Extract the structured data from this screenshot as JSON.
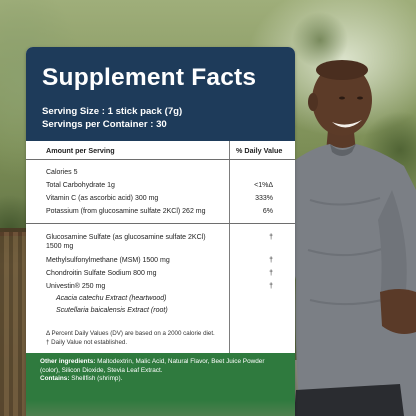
{
  "panel": {
    "title": "Supplement Facts",
    "serving_size": "Serving Size : 1 stick pack (7g)",
    "servings_per_container": "Servings per Container : 30",
    "header_amount": "Amount per Serving",
    "header_dv": "% Daily Value"
  },
  "nutrients": [
    {
      "name": "Calories  5",
      "dv": ""
    },
    {
      "name": "Total Carbohydrate  1g",
      "dv": "<1%Δ"
    },
    {
      "name": "Vitamin C (as ascorbic acid)  300 mg",
      "dv": "333%"
    },
    {
      "name": "Potassium (from glucosamine sulfate 2KCl) 262 mg",
      "dv": "6%"
    }
  ],
  "actives": [
    {
      "name": "Glucosamine Sulfate (as glucosamine sulfate 2KCl)",
      "name2": "1500 mg",
      "dv": "†"
    },
    {
      "name": "Methylsulfonylmethane (MSM)  1500 mg",
      "dv": "†"
    },
    {
      "name": "Chondroitin Sulfate Sodium  800 mg",
      "dv": "†"
    },
    {
      "name": "Univestin®  250 mg",
      "dv": "†"
    },
    {
      "name": "Acacia catechu Extract (heartwood)",
      "dv": ""
    },
    {
      "name": "Scutellaria baicalensis Extract (root)",
      "dv": ""
    }
  ],
  "footnotes": {
    "dv_note": "Δ  Percent Daily Values (DV) are based on a 2000 calorie diet.",
    "dagger_note": "† Daily Value not established."
  },
  "ingredients": {
    "other_label": "Other ingredients:",
    "other_text": " Maltodextrin, Malic Acid, Natural Flavor, Beet Juice Powder (color), Silicon Dioxide, Stevia Leaf Extract.",
    "contains_label": "Contains:",
    "contains_text": " Shellfish (shrimp)."
  },
  "colors": {
    "header_bg": "#1e3b5a",
    "ingredients_bg": "#2f7a3e",
    "runner_shirt": "#7b7f85"
  }
}
